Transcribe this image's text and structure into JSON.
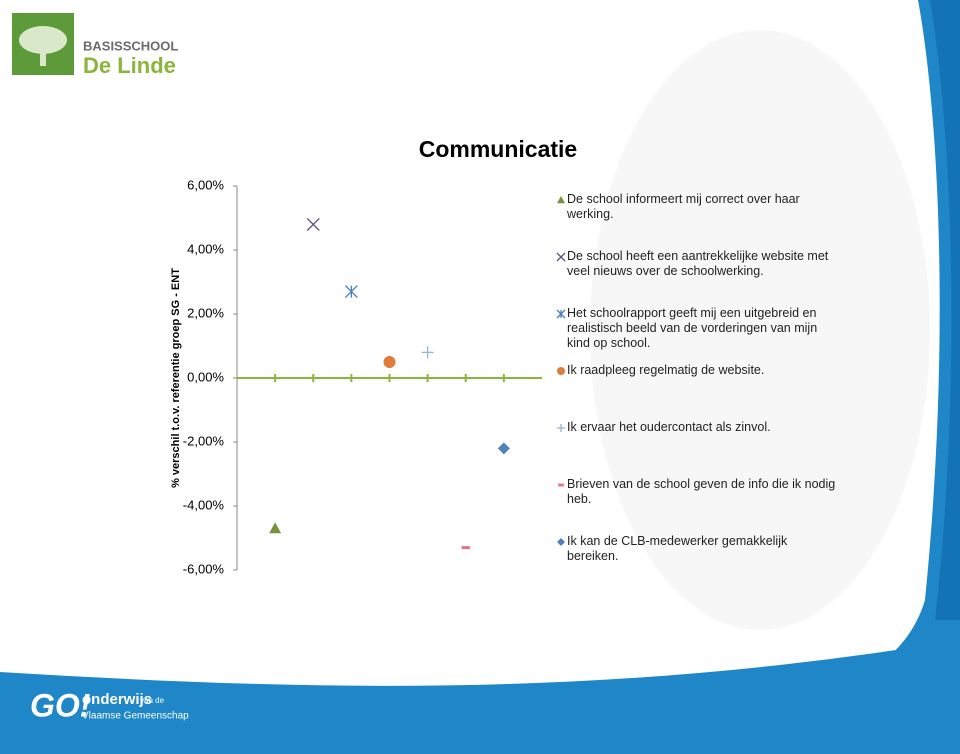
{
  "header": {
    "line1": "BASISSCHOOL",
    "line2": "De Linde"
  },
  "chart_data": {
    "type": "scatter",
    "title": "Communicatie",
    "y_label": "% verschil t.o.v. referentie groep SG - ENT",
    "xlim": [
      0,
      8
    ],
    "ylim": [
      -6,
      6
    ],
    "yticks": [
      {
        "value": -6,
        "label": "-6,00%"
      },
      {
        "value": -4,
        "label": "-4,00%"
      },
      {
        "value": -2,
        "label": "-2,00%"
      },
      {
        "value": 0,
        "label": "0,00%"
      },
      {
        "value": 2,
        "label": "2,00%"
      },
      {
        "value": 4,
        "label": "4,00%"
      },
      {
        "value": 6,
        "label": "6,00%"
      }
    ],
    "series": [
      {
        "name": "De school informeert mij correct over haar werking.",
        "color": "#77933c",
        "marker": "triangle",
        "x": [
          1
        ],
        "values": [
          -4.7
        ]
      },
      {
        "name": "De school heeft een aantrekkelijke website met veel nieuws over de schoolwerking.",
        "color": "#604a7b",
        "marker": "x",
        "x": [
          2
        ],
        "values": [
          4.8
        ]
      },
      {
        "name": "Het schoolrapport geeft mij een uitgebreid en realistisch beeld van de vorderingen van mijn kind op school.",
        "color": "#4a7ebb",
        "marker": "asterisk",
        "x": [
          3
        ],
        "values": [
          2.7
        ]
      },
      {
        "name": "Ik raadpleeg regelmatig de website.",
        "color": "#e07b39",
        "marker": "circle",
        "x": [
          4
        ],
        "values": [
          0.5
        ]
      },
      {
        "name": "Ik ervaar het oudercontact als zinvol.",
        "color": "#95b3d7",
        "marker": "plus",
        "x": [
          5
        ],
        "values": [
          0.8
        ]
      },
      {
        "name": "Brieven van de school geven de info die ik nodig heb.",
        "color": "#e0787f",
        "marker": "dash",
        "x": [
          6
        ],
        "values": [
          -5.3
        ]
      },
      {
        "name": "Ik kan de CLB-medewerker gemakkelijk bereiken.",
        "color": "#4f81bd",
        "marker": "diamond",
        "x": [
          7
        ],
        "values": [
          -2.2
        ]
      }
    ]
  },
  "footer": {
    "logo": "GO!",
    "line1": "onderwijs",
    "small": "van de",
    "line2": "Vlaamse Gemeenschap"
  }
}
